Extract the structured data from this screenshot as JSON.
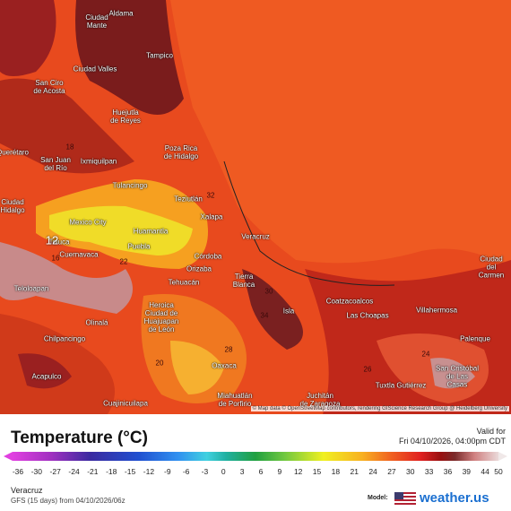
{
  "map": {
    "cities": [
      "Aldama",
      "Ciudad\nMante",
      "Tampico",
      "Ciudad Valles",
      "San Ciro\nde Acosta",
      "Huejutla\nde Reyes",
      "Poza Rica\nde Hidalgo",
      "Ixmiquilpan",
      "San Juan\ndel Río",
      "Querétaro",
      "Tulancingo",
      "Teziutlán",
      "Ciudad\nHidalgo",
      "Mexico City",
      "Xalapa",
      "Huamantla",
      "Veracruz",
      "Toluca",
      "Puebla",
      "Cuernavaca",
      "Córdoba",
      "Orizaba",
      "Tierra\nBlanca",
      "Tehuacán",
      "Teloloapan",
      "Heroica\nCiudad de\nHuajuapan\nde León",
      "Coatzacoalcos",
      "Las Choapas",
      "Villahermosa",
      "Isla",
      "Olinalá",
      "Chilpancingo",
      "Palenque",
      "Ciudad del\nCarmen",
      "Oaxaca",
      "San Cristóbal\nde Las\nCasas",
      "Acapulco",
      "Tuxtla Gutiérrez",
      "Miahuatlán\nde Porfirio",
      "Juchitán\nde Zaragoza",
      "Cuajinicuilapa"
    ],
    "contour_labels": [
      "12",
      "16",
      "20",
      "22",
      "24",
      "26",
      "28",
      "30",
      "32",
      "34",
      "18"
    ],
    "attribution": "© Map data © OpenStreetMap contributors, rendering GIScience Research Group @ Heidelberg University"
  },
  "legend": {
    "title": "Temperature (°C)",
    "valid_label": "Valid for",
    "valid_time": "Fri 04/10/2026, 04:00pm CDT",
    "ticks": [
      -36,
      -30,
      -27,
      -24,
      -21,
      -18,
      -15,
      -12,
      -9,
      -6,
      -3,
      0,
      3,
      6,
      9,
      12,
      15,
      18,
      21,
      24,
      27,
      30,
      33,
      36,
      39,
      44,
      50
    ]
  },
  "footer": {
    "location": "Veracruz",
    "run": "GFS (15 days) from 04/10/2026/06z",
    "model_label": "Model:",
    "brand": "weather.us"
  }
}
